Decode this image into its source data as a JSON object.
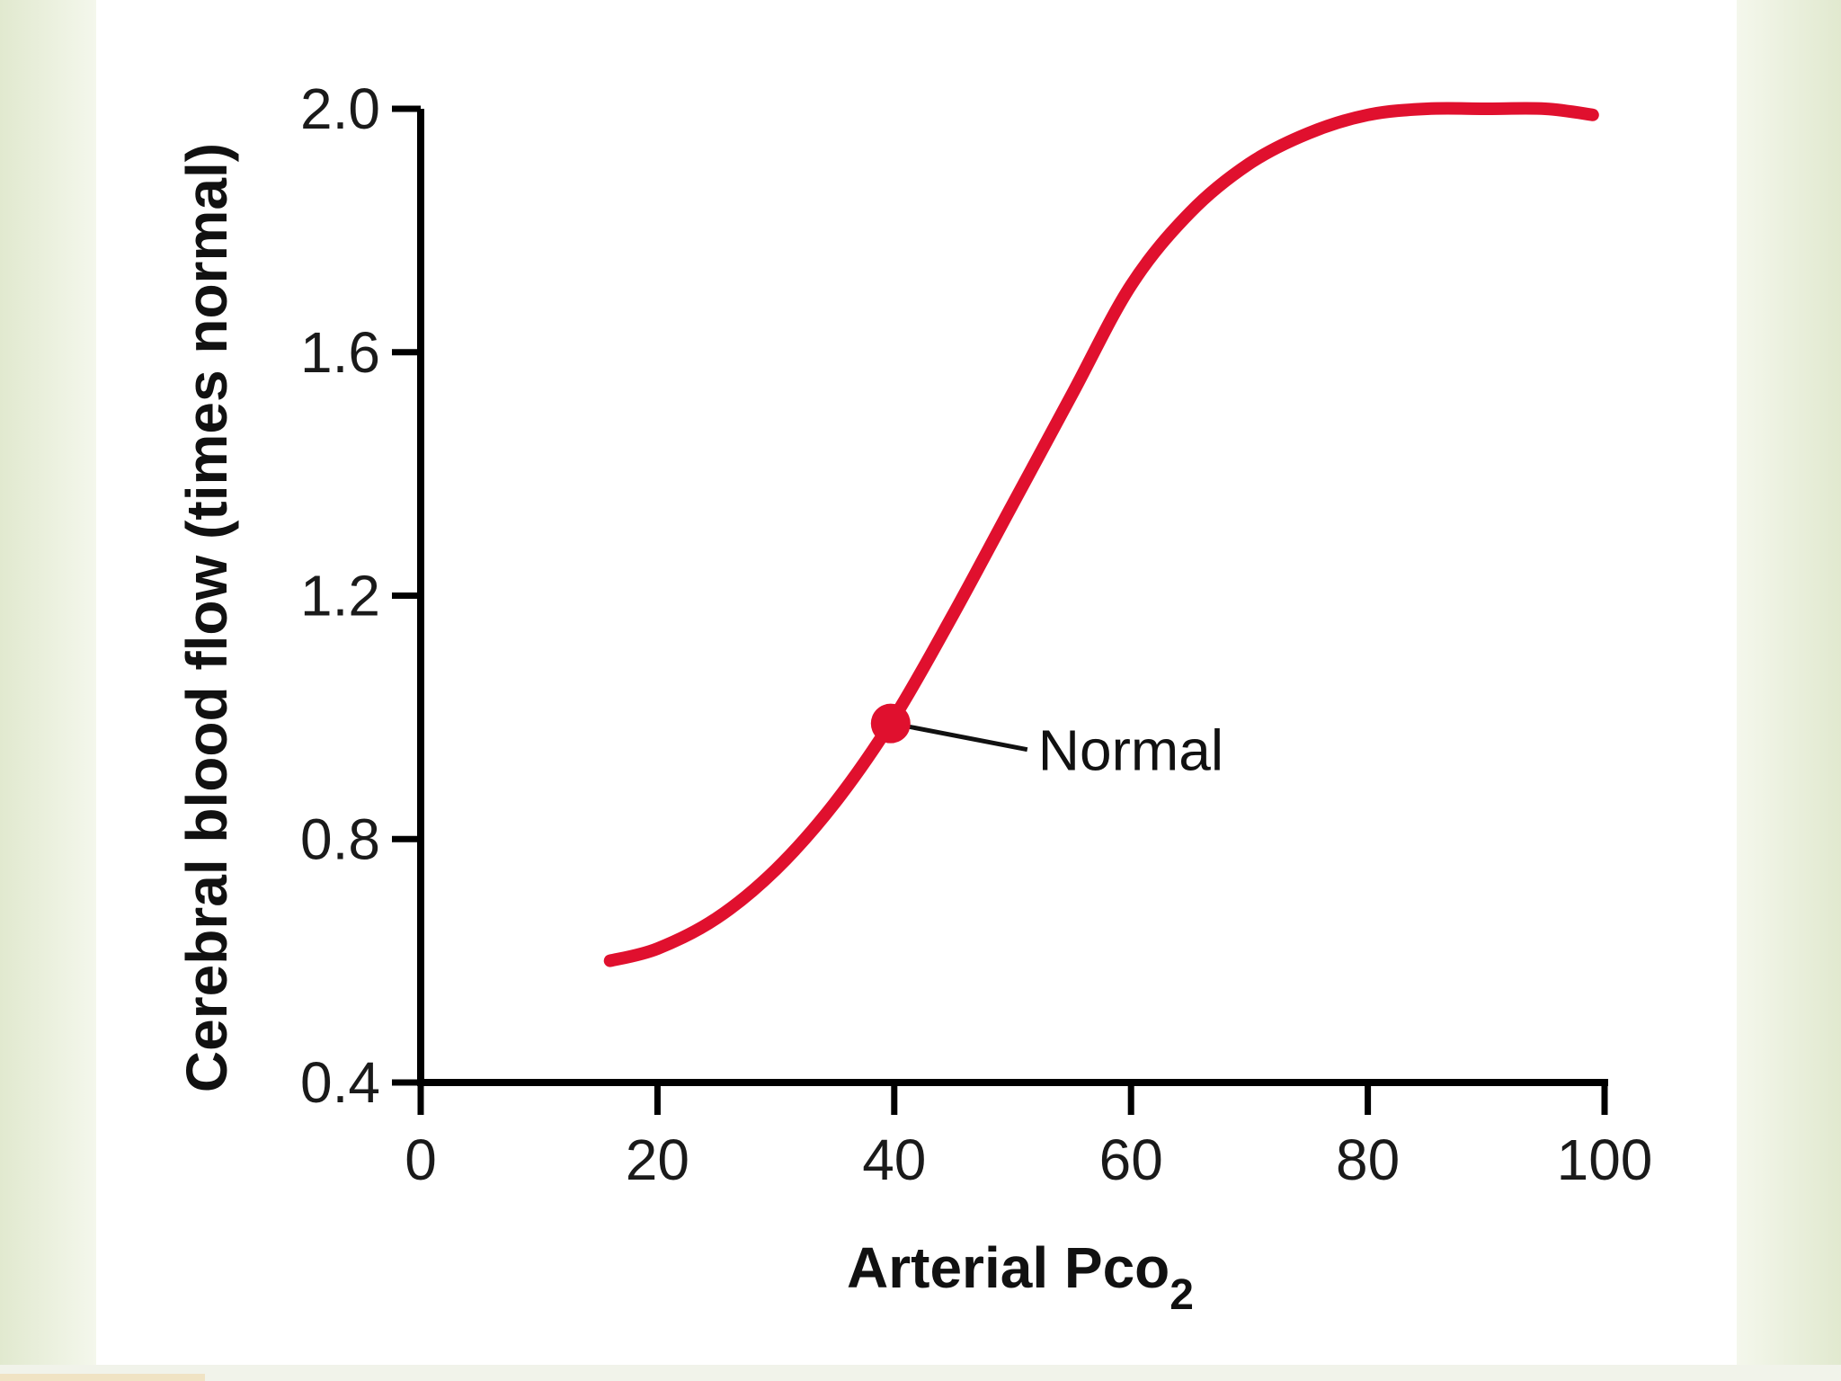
{
  "chart_data": {
    "type": "line",
    "title": "",
    "xlabel": "Arterial Pco",
    "xlabel_subscript": "2",
    "ylabel": "Cerebral blood flow (times normal)",
    "xlim": [
      0,
      100
    ],
    "ylim": [
      0.4,
      2.0
    ],
    "x_ticks": [
      "0",
      "20",
      "40",
      "60",
      "80",
      "100"
    ],
    "y_ticks": [
      "0.4",
      "0.8",
      "1.2",
      "1.6",
      "2.0"
    ],
    "grid": false,
    "series": [
      {
        "name": "Cerebral blood flow",
        "color": "#e0102e",
        "x": [
          16,
          20,
          25,
          30,
          35,
          40,
          45,
          50,
          55,
          60,
          65,
          70,
          75,
          80,
          85,
          90,
          95,
          99
        ],
        "y": [
          0.6,
          0.62,
          0.67,
          0.75,
          0.86,
          1.0,
          1.17,
          1.35,
          1.53,
          1.71,
          1.83,
          1.91,
          1.96,
          1.99,
          2.0,
          2.0,
          2.0,
          1.99
        ]
      }
    ],
    "annotations": [
      {
        "label": "Normal",
        "x": 40,
        "y": 0.99
      }
    ]
  },
  "colors": {
    "background_edge": "#e8eedb",
    "axis": "#000000",
    "curve": "#e0102e"
  }
}
